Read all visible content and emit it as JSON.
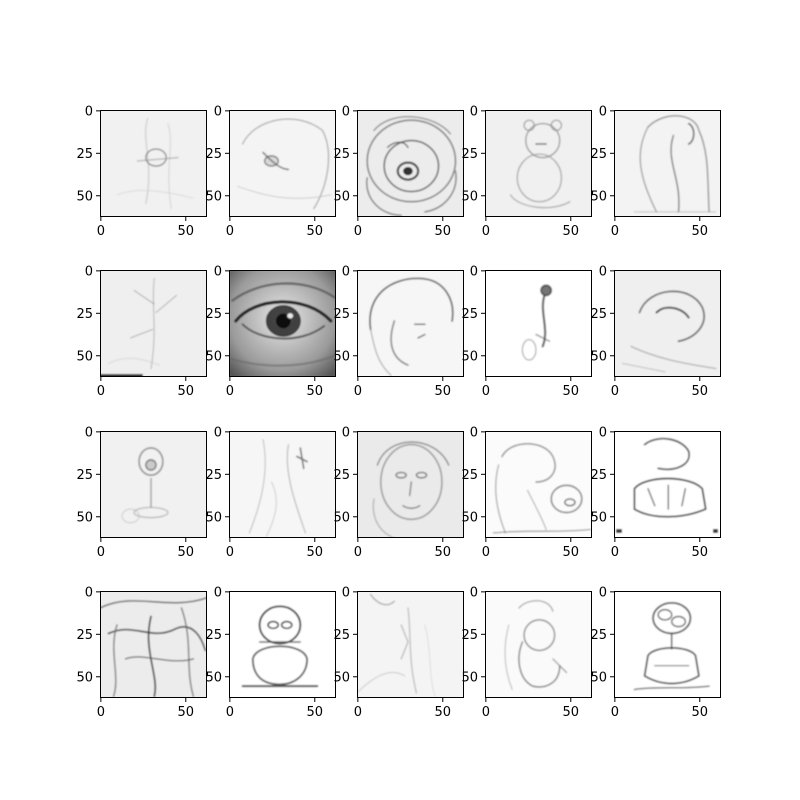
{
  "chart_data": {
    "type": "heatmap",
    "layout": {
      "rows": 4,
      "cols": 5
    },
    "colormap": "gray_r",
    "xlim": [
      0,
      63
    ],
    "ylim": [
      63,
      0
    ],
    "xticks": [
      0,
      50
    ],
    "yticks": [
      0,
      25,
      50
    ],
    "panels": [
      {
        "id": "r1c1",
        "sketch": "faint-figure"
      },
      {
        "id": "r1c2",
        "sketch": "faint-head"
      },
      {
        "id": "r1c3",
        "sketch": "rose-face"
      },
      {
        "id": "r1c4",
        "sketch": "teddy"
      },
      {
        "id": "r1c5",
        "sketch": "hooded-figure"
      },
      {
        "id": "r2c1",
        "sketch": "faint-branches"
      },
      {
        "id": "r2c2",
        "sketch": "eye"
      },
      {
        "id": "r2c3",
        "sketch": "face-profile"
      },
      {
        "id": "r2c4",
        "sketch": "small-figure"
      },
      {
        "id": "r2c5",
        "sketch": "reclining-face"
      },
      {
        "id": "r3c1",
        "sketch": "faint-flower"
      },
      {
        "id": "r3c2",
        "sketch": "faint-lines"
      },
      {
        "id": "r3c3",
        "sketch": "portrait"
      },
      {
        "id": "r3c4",
        "sketch": "cluster"
      },
      {
        "id": "r3c5",
        "sketch": "car-blobs"
      },
      {
        "id": "r4c1",
        "sketch": "dense-tangle"
      },
      {
        "id": "r4c2",
        "sketch": "teddy-dark"
      },
      {
        "id": "r4c3",
        "sketch": "vertical-streak"
      },
      {
        "id": "r4c4",
        "sketch": "seated-figure"
      },
      {
        "id": "r4c5",
        "sketch": "flower-pot"
      }
    ]
  }
}
